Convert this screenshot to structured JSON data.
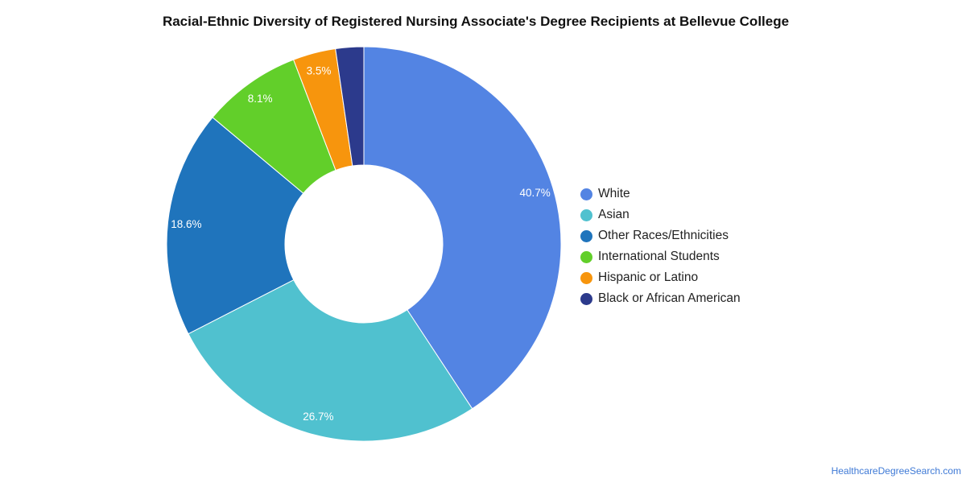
{
  "chart_data": {
    "type": "pie",
    "variant": "donut",
    "title": "Racial-Ethnic Diversity of Registered Nursing Associate's Degree Recipients at Bellevue College",
    "slices": [
      {
        "label": "White",
        "value": 40.7,
        "display": "40.7%",
        "color": "#5384e3"
      },
      {
        "label": "Asian",
        "value": 26.7,
        "display": "26.7%",
        "color": "#50c1cf"
      },
      {
        "label": "Other Races/Ethnicities",
        "value": 18.6,
        "display": "18.6%",
        "color": "#1f74bc"
      },
      {
        "label": "International Students",
        "value": 8.1,
        "display": "8.1%",
        "color": "#62cf2a"
      },
      {
        "label": "Hispanic or Latino",
        "value": 3.5,
        "display": "3.5%",
        "color": "#f7950d"
      },
      {
        "label": "Black or African American",
        "value": 2.3,
        "display": "",
        "color": "#2c3a8c"
      }
    ],
    "legend_position": "right"
  },
  "source": {
    "text": "HealthcareDegreeSearch.com"
  }
}
